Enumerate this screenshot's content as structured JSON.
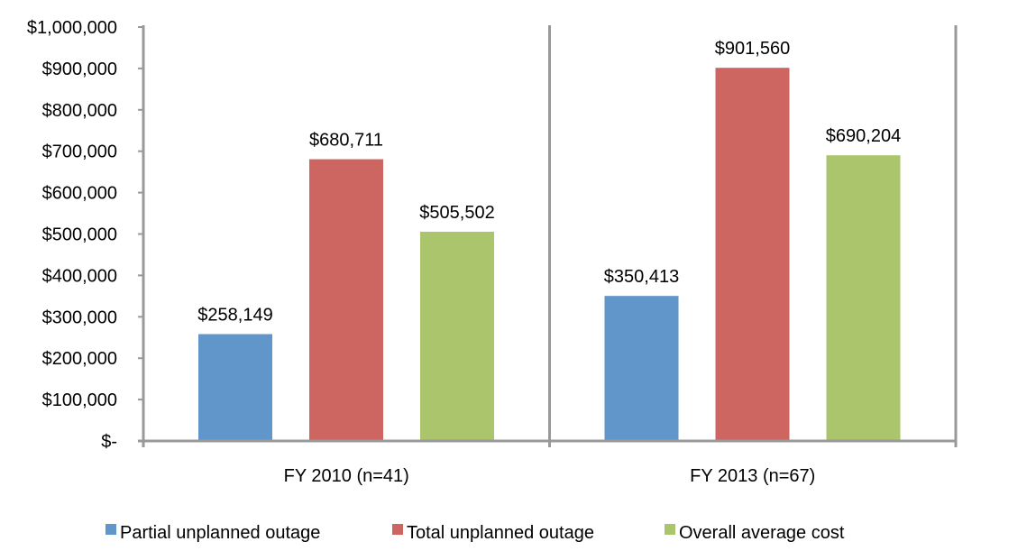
{
  "chart_data": {
    "type": "bar",
    "title": "",
    "xlabel": "",
    "ylabel": "",
    "categories": [
      "FY 2010 (n=41)",
      "FY 2013 (n=67)"
    ],
    "series": [
      {
        "name": "Partial unplanned outage",
        "color": "#6096CA",
        "values": [
          258149,
          350413
        ],
        "labels": [
          "$258,149",
          "$350,413"
        ]
      },
      {
        "name": "Total unplanned outage",
        "color": "#CD6661",
        "values": [
          680711,
          901560
        ],
        "labels": [
          "$680,711",
          "$901,560"
        ]
      },
      {
        "name": "Overall average cost",
        "color": "#ABC56C",
        "values": [
          505502,
          690204
        ],
        "labels": [
          "$505,502",
          "$690,204"
        ]
      }
    ],
    "ylim": [
      0,
      1000000
    ],
    "yticks": [
      0,
      100000,
      200000,
      300000,
      400000,
      500000,
      600000,
      700000,
      800000,
      900000,
      1000000
    ],
    "ytick_labels": [
      "$-",
      "$100,000",
      "$200,000",
      "$300,000",
      "$400,000",
      "$500,000",
      "$600,000",
      "$700,000",
      "$800,000",
      "$900,000",
      "$1,000,000"
    ],
    "grid": false,
    "legend_position": "bottom"
  }
}
